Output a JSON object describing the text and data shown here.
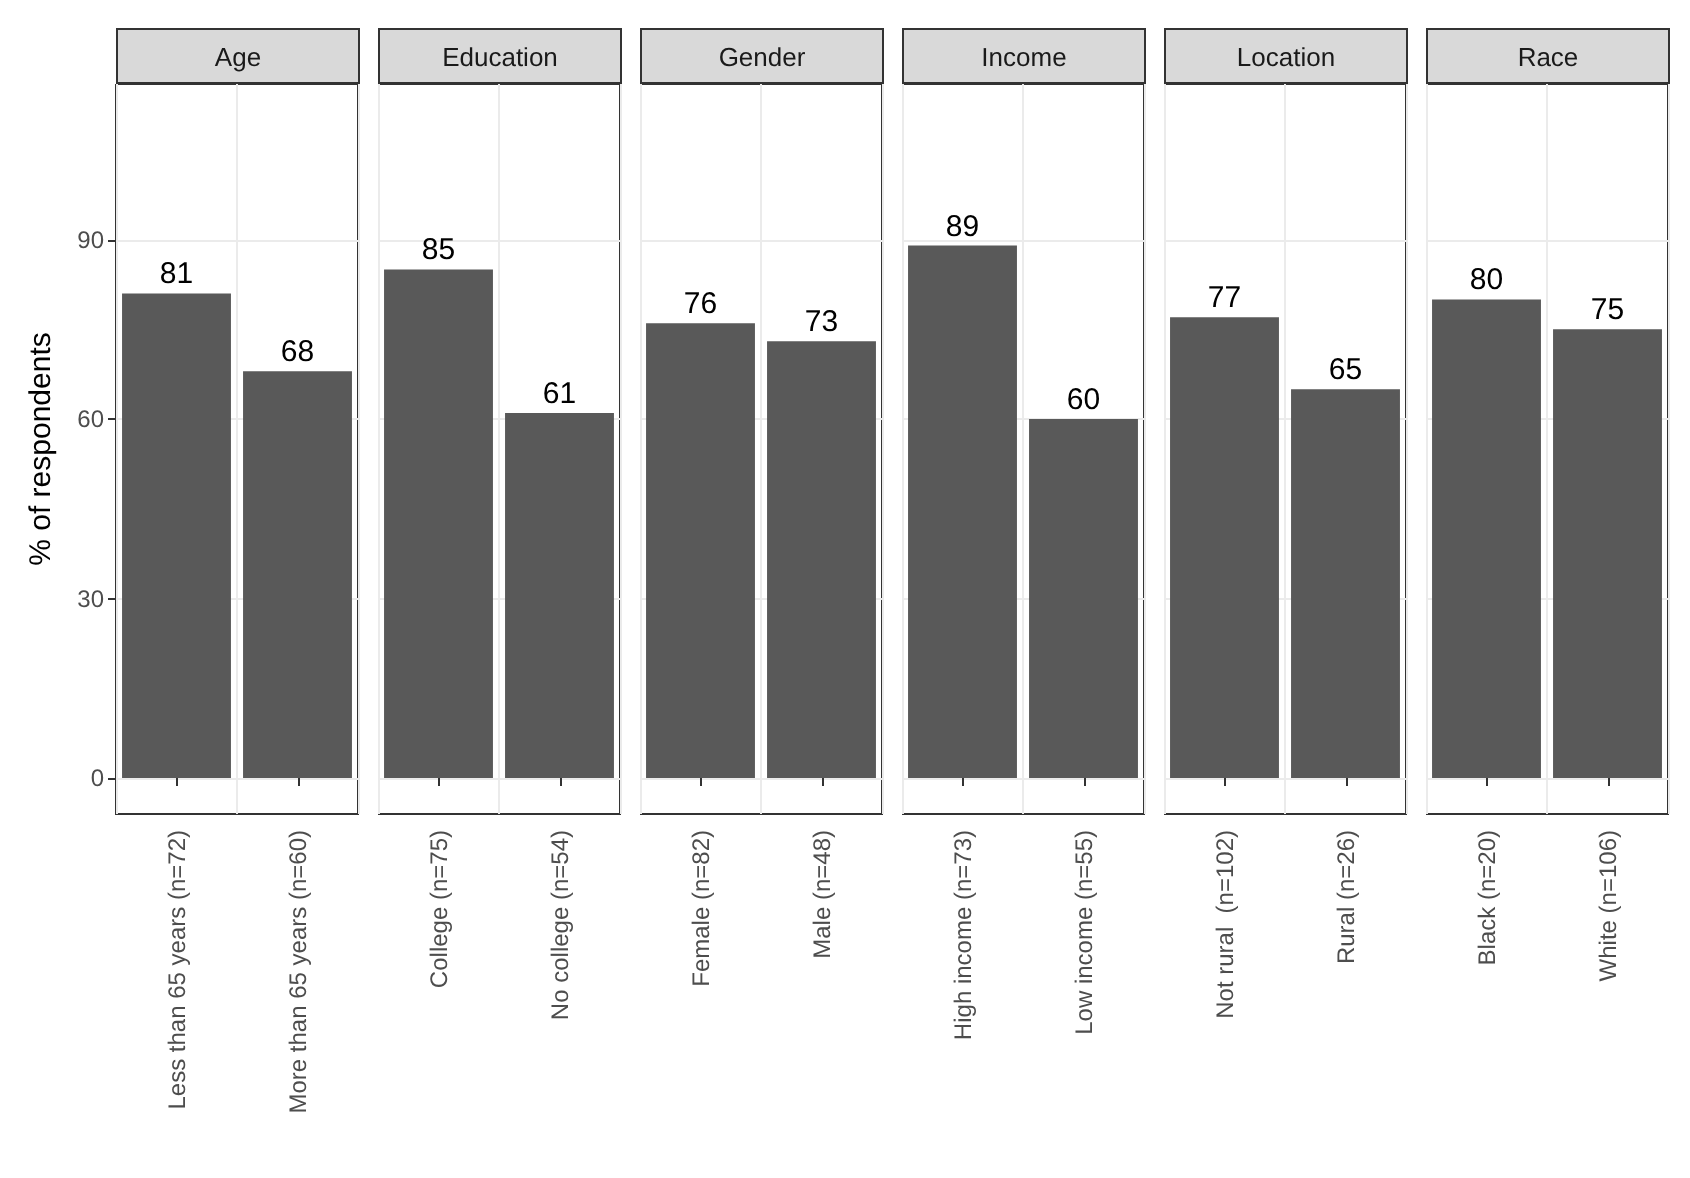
{
  "chart_data": [
    {
      "type": "bar",
      "title": "Age",
      "ylabel": "% of respondents",
      "categories": [
        "Less than 65 years (n=72)",
        "More than 65 years (n=60)"
      ],
      "values": [
        81,
        68
      ],
      "color": "#595959",
      "data_labels": true,
      "ylim": [
        -6,
        116
      ],
      "yticks": [
        0,
        30,
        60,
        90
      ],
      "grid": true
    },
    {
      "type": "bar",
      "title": "Education",
      "categories": [
        "College (n=75)",
        "No college (n=54)"
      ],
      "values": [
        85,
        61
      ],
      "color": "#595959",
      "data_labels": true,
      "ylim": [
        -6,
        116
      ],
      "yticks": [
        0,
        30,
        60,
        90
      ],
      "grid": true,
      "tick_labels": "x"
    },
    {
      "type": "bar",
      "title": "Gender",
      "categories": [
        "Female (n=82)",
        "Male (n=48)"
      ],
      "values": [
        76,
        73
      ],
      "color": "#595959",
      "data_labels": true,
      "ylim": [
        -6,
        116
      ],
      "yticks": [
        0,
        30,
        60,
        90
      ],
      "grid": true,
      "tick_labels": "x"
    },
    {
      "type": "bar",
      "title": "Income",
      "categories": [
        "High income (n=73)",
        "Low income (n=55)"
      ],
      "values": [
        89,
        60
      ],
      "color": "#595959",
      "data_labels": true,
      "ylim": [
        -6,
        116
      ],
      "yticks": [
        0,
        30,
        60,
        90
      ],
      "grid": true,
      "tick_labels": "x"
    },
    {
      "type": "bar",
      "title": "Location",
      "categories": [
        "Not rural  (n=102)",
        "Rural (n=26)"
      ],
      "values": [
        77,
        65
      ],
      "color": "#595959",
      "data_labels": true,
      "ylim": [
        -6,
        116
      ],
      "yticks": [
        0,
        30,
        60,
        90
      ],
      "grid": true,
      "tick_labels": "x"
    },
    {
      "type": "bar",
      "title": "Race",
      "categories": [
        "Black (n=20)",
        "White (n=106)"
      ],
      "values": [
        80,
        75
      ],
      "color": "#595959",
      "data_labels": true,
      "ylim": [
        -6,
        116
      ],
      "yticks": [
        0,
        30,
        60,
        90
      ],
      "grid": true,
      "tick_labels": "x"
    }
  ]
}
